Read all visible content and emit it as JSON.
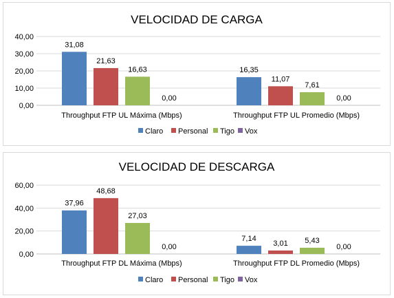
{
  "chart_data": [
    {
      "type": "bar",
      "title": "VELOCIDAD DE CARGA",
      "categories": [
        "Throughput FTP UL Máxima (Mbps)",
        "Throughput FTP UL Promedio (Mbps)"
      ],
      "series": [
        {
          "name": "Claro",
          "color": "#4f81bd",
          "values": [
            31.08,
            16.35
          ],
          "labels": [
            "31,08",
            "16,35"
          ]
        },
        {
          "name": "Personal",
          "color": "#c0504d",
          "values": [
            21.63,
            11.07
          ],
          "labels": [
            "21,63",
            "11,07"
          ]
        },
        {
          "name": "Tigo",
          "color": "#9bbb59",
          "values": [
            16.63,
            7.61
          ],
          "labels": [
            "16,63",
            "7,61"
          ]
        },
        {
          "name": "Vox",
          "color": "#8064a2",
          "values": [
            0,
            0
          ],
          "labels": [
            "0,00",
            "0,00"
          ]
        }
      ],
      "yticks": [
        "0,00",
        "10,00",
        "20,00",
        "30,00",
        "40,00"
      ],
      "ylim": [
        0,
        40
      ],
      "grid": true,
      "legend": "bottom"
    },
    {
      "type": "bar",
      "title": "VELOCIDAD DE DESCARGA",
      "categories": [
        "Throughput FTP DL Máxima (Mbps)",
        "Throughput FTP DL Promedio (Mbps)"
      ],
      "series": [
        {
          "name": "Claro",
          "color": "#4f81bd",
          "values": [
            37.96,
            7.14
          ],
          "labels": [
            "37,96",
            "7,14"
          ]
        },
        {
          "name": "Personal",
          "color": "#c0504d",
          "values": [
            48.68,
            3.01
          ],
          "labels": [
            "48,68",
            "3,01"
          ]
        },
        {
          "name": "Tigo",
          "color": "#9bbb59",
          "values": [
            27.03,
            5.43
          ],
          "labels": [
            "27,03",
            "5,43"
          ]
        },
        {
          "name": "Vox",
          "color": "#8064a2",
          "values": [
            0,
            0
          ],
          "labels": [
            "0,00",
            "0,00"
          ]
        }
      ],
      "yticks": [
        "0,00",
        "20,00",
        "40,00",
        "60,00"
      ],
      "ylim": [
        0,
        60
      ],
      "grid": true,
      "legend": "bottom"
    }
  ]
}
